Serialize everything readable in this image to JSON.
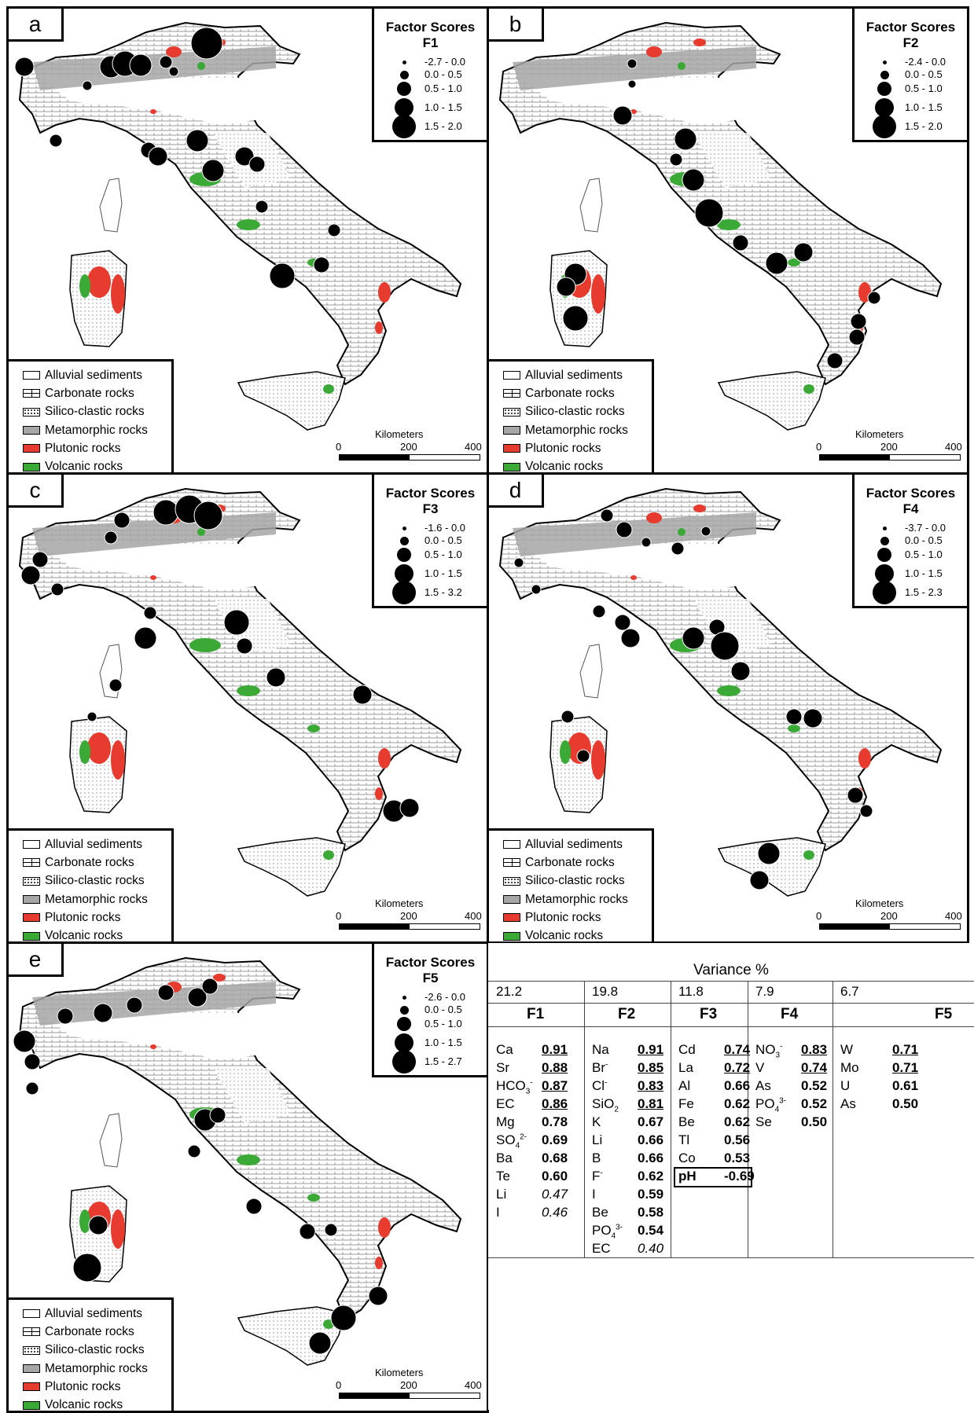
{
  "panels": [
    {
      "tag": "a",
      "title": "Factor Scores",
      "factor": "F1",
      "classes": [
        "-2.7 - 0.0",
        "0.0 - 0.5",
        "0.5 - 1.0",
        "1.0 - 1.5",
        "1.5 - 2.0"
      ]
    },
    {
      "tag": "b",
      "title": "Factor Scores",
      "factor": "F2",
      "classes": [
        "-2.4 - 0.0",
        "0.0 - 0.5",
        "0.5 - 1.0",
        "1.0 - 1.5",
        "1.5 - 2.0"
      ]
    },
    {
      "tag": "c",
      "title": "Factor Scores",
      "factor": "F3",
      "classes": [
        "-1.6 - 0.0",
        "0.0 - 0.5",
        "0.5 - 1.0",
        "1.0 - 1.5",
        "1.5 - 3.2"
      ]
    },
    {
      "tag": "d",
      "title": "Factor Scores",
      "factor": "F4",
      "classes": [
        "-3.7 - 0.0",
        "0.0 - 0.5",
        "0.5 - 1.0",
        "1.0 - 1.5",
        "1.5 - 2.3"
      ]
    },
    {
      "tag": "e",
      "title": "Factor Scores",
      "factor": "F5",
      "classes": [
        "-2.6 - 0.0",
        "0.0 - 0.5",
        "0.5 - 1.0",
        "1.0 - 1.5",
        "1.5 - 2.7"
      ]
    }
  ],
  "legend": {
    "items": [
      {
        "label": "Alluvial sediments",
        "color": "#ffffff"
      },
      {
        "label": "Carbonate rocks",
        "color": "#ffffff"
      },
      {
        "label": "Silico-clastic rocks",
        "color": "#ffffff"
      },
      {
        "label": "Metamorphic rocks",
        "color": "#a6a6a6"
      },
      {
        "label": "Plutonic rocks",
        "color": "#e63b2e"
      },
      {
        "label": "Volcanic rocks",
        "color": "#3aa935"
      }
    ]
  },
  "scale": {
    "title": "Kilometers",
    "ticks": [
      "0",
      "200",
      "400"
    ]
  },
  "table": {
    "title": "Variance %",
    "factors": [
      {
        "name": "F1",
        "variance": "21.2",
        "loadings": [
          {
            "el": "Ca",
            "v": "0.91",
            "u": true
          },
          {
            "el": "Sr",
            "v": "0.88",
            "u": true
          },
          {
            "el": "HCO",
            "sub": "3",
            "sup": "-",
            "v": "0.87",
            "u": true
          },
          {
            "el": "EC",
            "v": "0.86",
            "u": true
          },
          {
            "el": "Mg",
            "v": "0.78"
          },
          {
            "el": "SO",
            "sub": "4",
            "sup": "2-",
            "v": "0.69"
          },
          {
            "el": "Ba",
            "v": "0.68"
          },
          {
            "el": "Te",
            "v": "0.60"
          },
          {
            "el": "Li",
            "v": "0.47",
            "i": true
          },
          {
            "el": "I",
            "v": "0.46",
            "i": true
          }
        ]
      },
      {
        "name": "F2",
        "variance": "19.8",
        "loadings": [
          {
            "el": "Na",
            "v": "0.91",
            "u": true
          },
          {
            "el": "Br",
            "sup": "-",
            "v": "0.85",
            "u": true
          },
          {
            "el": "Cl",
            "sup": "-",
            "v": "0.83",
            "u": true
          },
          {
            "el": "SiO",
            "sub": "2",
            "v": "0.81",
            "u": true
          },
          {
            "el": "K",
            "v": "0.67"
          },
          {
            "el": "Li",
            "v": "0.66"
          },
          {
            "el": "B",
            "v": "0.66"
          },
          {
            "el": "F",
            "sup": "-",
            "v": "0.62"
          },
          {
            "el": "I",
            "v": "0.59"
          },
          {
            "el": "Be",
            "v": "0.58"
          },
          {
            "el": "PO",
            "sub": "4",
            "sup": "3-",
            "v": "0.54"
          },
          {
            "el": "EC",
            "v": "0.40",
            "i": true
          }
        ]
      },
      {
        "name": "F3",
        "variance": "11.8",
        "loadings": [
          {
            "el": "Cd",
            "v": "0.74",
            "u": true
          },
          {
            "el": "La",
            "v": "0.72",
            "u": true
          },
          {
            "el": "Al",
            "v": "0.66"
          },
          {
            "el": "Fe",
            "v": "0.62"
          },
          {
            "el": "Be",
            "v": "0.62"
          },
          {
            "el": "Tl",
            "v": "0.56"
          },
          {
            "el": "Co",
            "v": "0.53"
          },
          {
            "el": "pH",
            "v": "-0.69",
            "boxed": true
          }
        ]
      },
      {
        "name": "F4",
        "variance": "7.9",
        "loadings": [
          {
            "el": "NO",
            "sub": "3",
            "sup": "-",
            "v": "0.83",
            "u": true
          },
          {
            "el": "V",
            "v": "0.74",
            "u": true
          },
          {
            "el": "As",
            "v": "0.52"
          },
          {
            "el": "PO",
            "sub": "4",
            "sup": "3-",
            "v": "0.52"
          },
          {
            "el": "Se",
            "v": "0.50"
          }
        ]
      },
      {
        "name": "F5",
        "variance": "6.7",
        "loadings": [
          {
            "el": "W",
            "v": "0.71",
            "u": true
          },
          {
            "el": "Mo",
            "v": "0.71",
            "u": true
          },
          {
            "el": "U",
            "v": "0.61"
          },
          {
            "el": "As",
            "v": "0.50"
          }
        ]
      }
    ]
  }
}
